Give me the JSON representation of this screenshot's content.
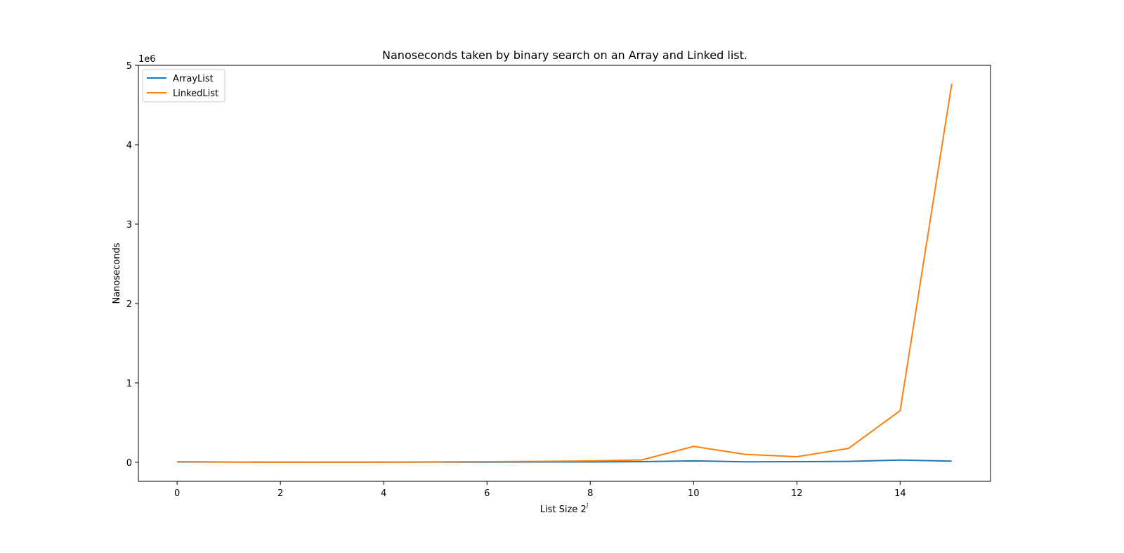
{
  "chart_data": {
    "type": "line",
    "title": "Nanoseconds taken by binary search on an Array and Linked list.",
    "xlabel": "List Size 2",
    "xlabel_superscript": "i",
    "ylabel": "Nanoseconds",
    "y_offset_label": "1e6",
    "xlim": [
      -0.75,
      15.75
    ],
    "ylim": [
      -240000,
      5000000
    ],
    "xticks": [
      0,
      2,
      4,
      6,
      8,
      10,
      12,
      14
    ],
    "yticks": [
      0,
      1000000,
      2000000,
      3000000,
      4000000,
      5000000
    ],
    "ytick_labels": [
      "0",
      "1",
      "2",
      "3",
      "4",
      "5"
    ],
    "x": [
      0,
      1,
      2,
      3,
      4,
      5,
      6,
      7,
      8,
      9,
      10,
      11,
      12,
      13,
      14,
      15
    ],
    "legend_position": "upper-left",
    "grid": false,
    "series": [
      {
        "name": "ArrayList",
        "color": "#1f77b4",
        "values": [
          5000,
          2000,
          1000,
          1000,
          1500,
          2000,
          2500,
          3000,
          4000,
          8000,
          18000,
          6000,
          8000,
          11000,
          28000,
          15000
        ]
      },
      {
        "name": "LinkedList",
        "color": "#ff7f0e",
        "values": [
          8000,
          3000,
          1000,
          2000,
          3000,
          5000,
          8000,
          11000,
          17000,
          30000,
          200000,
          100000,
          70000,
          175000,
          650000,
          4770000
        ]
      }
    ]
  }
}
